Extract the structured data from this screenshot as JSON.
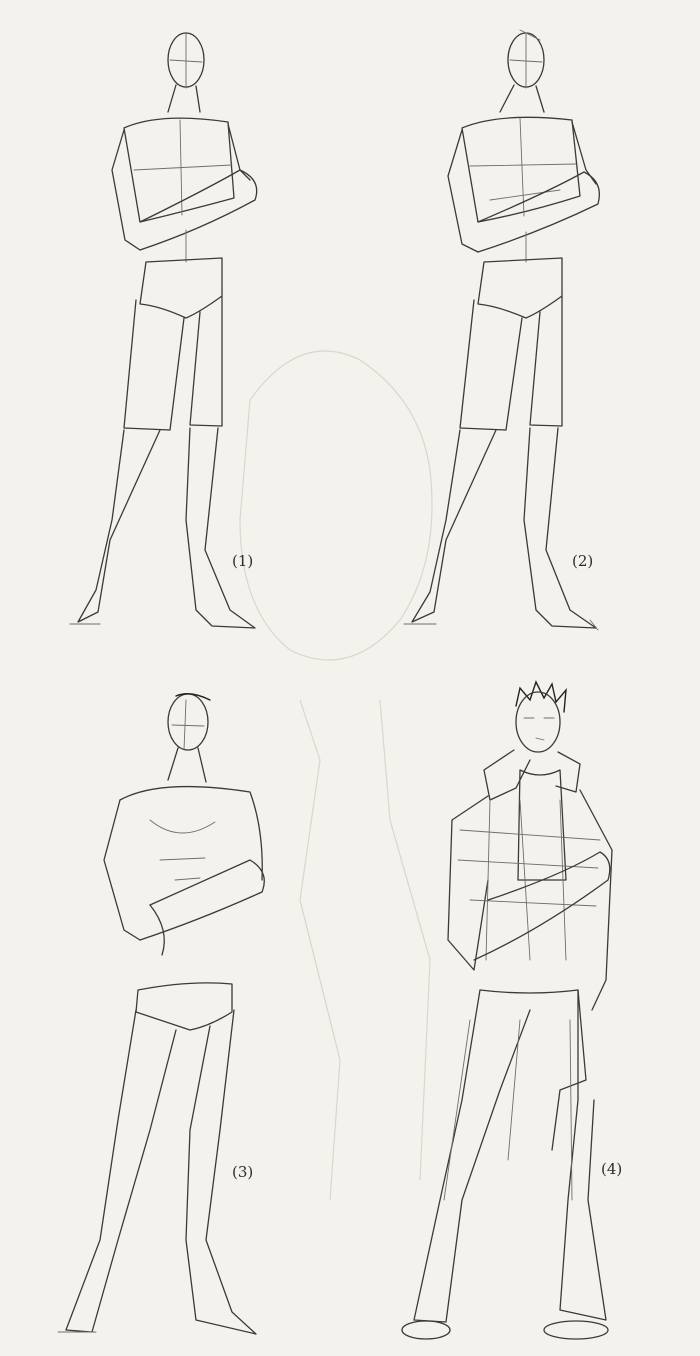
{
  "steps": [
    {
      "label": "(1)"
    },
    {
      "label": "(2)"
    },
    {
      "label": "(3)"
    },
    {
      "label": "(4)"
    }
  ]
}
